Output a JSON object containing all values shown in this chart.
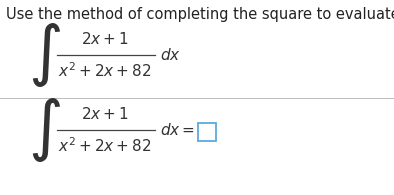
{
  "title": "Use the method of completing the square to evaluate the integral.",
  "title_fontsize": 10.5,
  "title_color": "#222222",
  "background_color": "#ffffff",
  "line_color": "#bbbbbb",
  "text_color": "#333333",
  "integral_fs": 22,
  "math_fs": 11,
  "box_color_edge": "#5aaadd",
  "box_color_face": "#ffffff",
  "frac_line_color": "#444444"
}
